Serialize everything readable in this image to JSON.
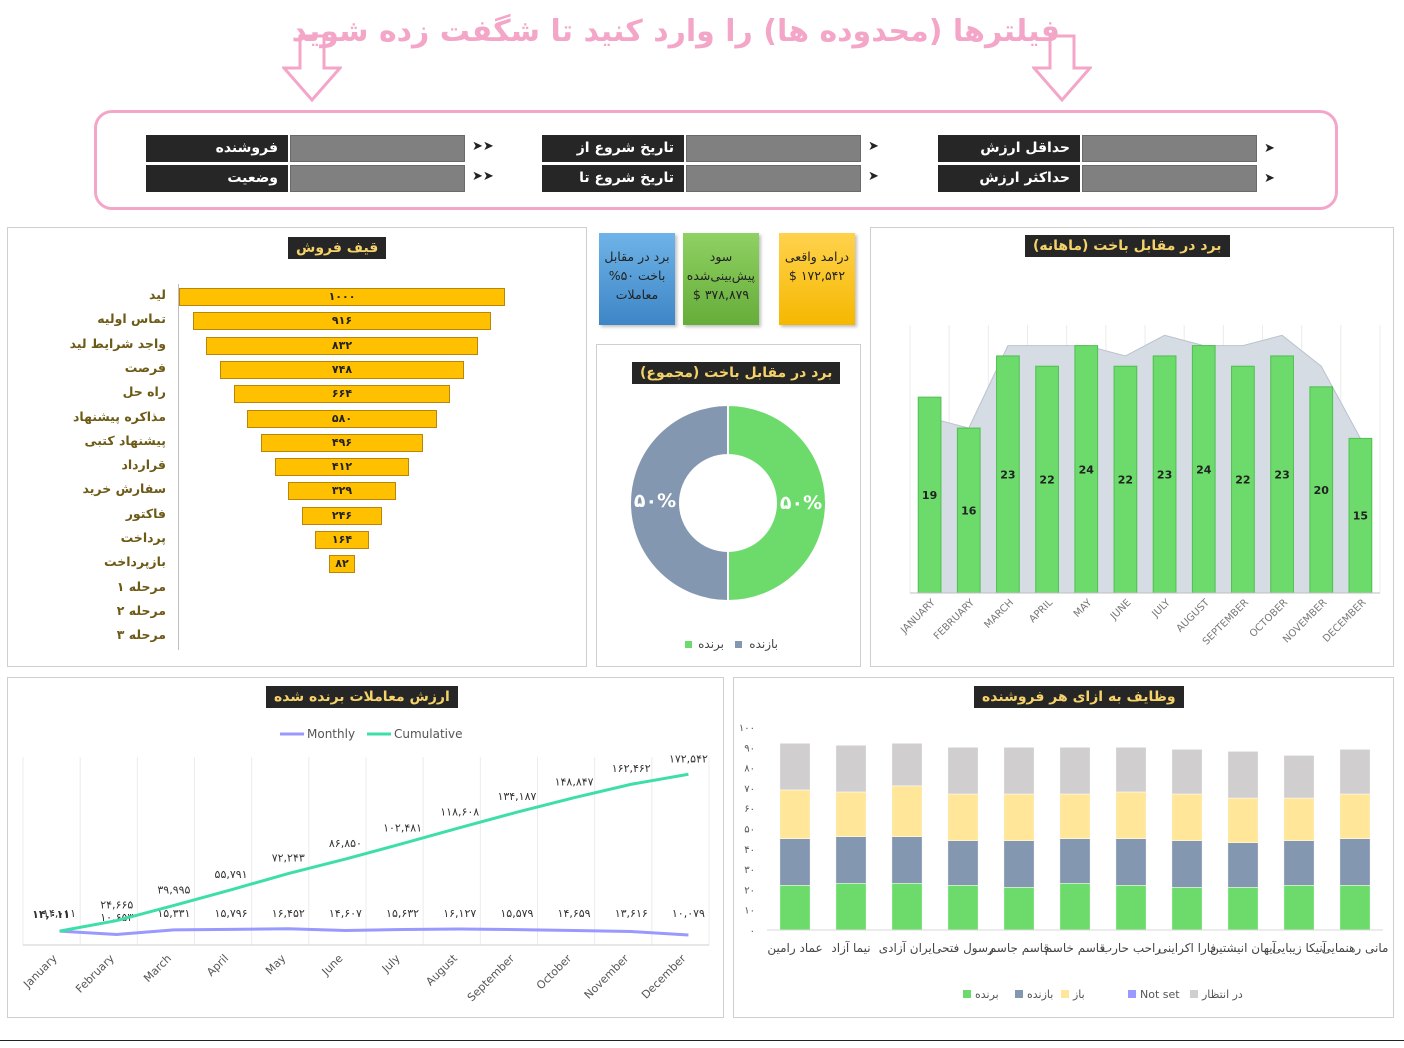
{
  "banner": {
    "text": "فیلترها (محدوده ها) را وارد کنید تا شگفت زده شوید"
  },
  "filters": {
    "seller": "فروشنده",
    "status": "وضعیت",
    "start_from": "تاریخ شروع از",
    "start_to": "تاریخ شروع تا",
    "min_value": "حداقل ارزش",
    "max_value": "حداکثر ارزش",
    "mark_double": "➤➤",
    "mark_single": "➤"
  },
  "kpis": {
    "revenue": "درامد واقعی ۱۷۲,۵۴۲ $",
    "profit": "سود پیش‌بینی‌شده ۳۷۸,۸۷۹ $",
    "winrate": "برد در مقابل باخت ۵۰% معاملات"
  },
  "colors": {
    "win": "#6cdb6c",
    "loss": "#8497b0",
    "open": "#ffe699",
    "notset": "#9999ff",
    "pending": "#d0cece",
    "funnel": "#ffc000"
  },
  "funnel": {
    "title": "قیف فروش",
    "stages": [
      {
        "label": "لید",
        "value": 1000,
        "display": "۱۰۰۰"
      },
      {
        "label": "تماس اولیه",
        "value": 916,
        "display": "۹۱۶"
      },
      {
        "label": "واجد شرایط لید",
        "value": 832,
        "display": "۸۳۲"
      },
      {
        "label": "فرصت",
        "value": 748,
        "display": "۷۴۸"
      },
      {
        "label": "راه حل",
        "value": 664,
        "display": "۶۶۴"
      },
      {
        "label": "مذاکره پیشنهاد",
        "value": 580,
        "display": "۵۸۰"
      },
      {
        "label": "پیشنهاد کتبی",
        "value": 496,
        "display": "۴۹۶"
      },
      {
        "label": "قرارداد",
        "value": 412,
        "display": "۴۱۲"
      },
      {
        "label": "سفارش خرید",
        "value": 329,
        "display": "۳۲۹"
      },
      {
        "label": "فاکتور",
        "value": 246,
        "display": "۲۴۶"
      },
      {
        "label": "پرداخت",
        "value": 164,
        "display": "۱۶۴"
      },
      {
        "label": "بازپرداخت",
        "value": 82,
        "display": "۸۲"
      },
      {
        "label": "مرحله ۱",
        "value": 0,
        "display": ""
      },
      {
        "label": "مرحله ۲",
        "value": 0,
        "display": ""
      },
      {
        "label": "مرحله ۳",
        "value": 0,
        "display": ""
      }
    ]
  },
  "donut": {
    "title": "برد در مقابل باخت (مجموع)",
    "win_label": "۵۰%",
    "loss_label": "۵۰%",
    "legend_win": "برنده",
    "legend_loss": "بازنده",
    "win": 50,
    "loss": 50
  },
  "chart_data": [
    {
      "type": "bar",
      "title": "برد در مقابل باخت (ماهانه)",
      "categories": [
        "JANUARY",
        "FEBRUARY",
        "MARCH",
        "APRIL",
        "MAY",
        "JUNE",
        "JULY",
        "AUGUST",
        "SEPTEMBER",
        "OCTOBER",
        "NOVEMBER",
        "DECEMBER"
      ],
      "values": [
        19,
        16,
        23,
        22,
        24,
        22,
        23,
        24,
        22,
        23,
        20,
        15
      ],
      "area_values": [
        17,
        16,
        24,
        24,
        24,
        23,
        25,
        24,
        24,
        25,
        22,
        15
      ]
    },
    {
      "type": "line",
      "title": "ارزش معاملات برنده شده",
      "categories": [
        "January",
        "February",
        "March",
        "April",
        "May",
        "June",
        "July",
        "August",
        "September",
        "October",
        "November",
        "December"
      ],
      "series": [
        {
          "name": "Monthly",
          "values": [
            14011,
            10653,
            15331,
            15796,
            16452,
            14607,
            15632,
            16127,
            15579,
            14659,
            13616,
            10079
          ],
          "labels": [
            "۱۴,۰۱۱",
            "۱۰,۶۵۳",
            "۱۵,۳۳۱",
            "۱۵,۷۹۶",
            "۱۶,۴۵۲",
            "۱۴,۶۰۷",
            "۱۵,۶۳۲",
            "۱۶,۱۲۷",
            "۱۵,۵۷۹",
            "۱۴,۶۵۹",
            "۱۳,۶۱۶",
            "۱۰,۰۷۹"
          ]
        },
        {
          "name": "Cumulative",
          "values": [
            14011,
            24665,
            39995,
            55791,
            72243,
            86850,
            102481,
            118608,
            134187,
            148847,
            162462,
            172542
          ],
          "labels": [
            "",
            "۲۴,۶۶۵",
            "۳۹,۹۹۵",
            "۵۵,۷۹۱",
            "۷۲,۲۴۳",
            "۸۶,۸۵۰",
            "۱۰۲,۴۸۱",
            "۱۱۸,۶۰۸",
            "۱۳۴,۱۸۷",
            "۱۴۸,۸۴۷",
            "۱۶۲,۴۶۲",
            "۱۷۲,۵۴۲"
          ]
        }
      ],
      "ylim": [
        0,
        190000
      ]
    },
    {
      "type": "bar",
      "stacked": true,
      "title": "وظایف به ازای هر فروشنده",
      "categories": [
        "مانی رهنمایی",
        "آنیکا زیبایی",
        "آیهان انیشتین",
        "فارا اکراینی",
        "راحب حارب",
        "قاسم خاسم",
        "قاسم جاسم",
        "رسول فتحی",
        "ایران آزادی",
        "نیما آزاد",
        "عماد رامین"
      ],
      "yticks": [
        "۰",
        "۱۰",
        "۲۰",
        "۳۰",
        "۴۰",
        "۵۰",
        "۶۰",
        "۷۰",
        "۸۰",
        "۹۰",
        "۱۰۰"
      ],
      "ylim": [
        0,
        100
      ],
      "series": [
        {
          "name": "برنده",
          "values": [
            22,
            22,
            21,
            21,
            22,
            23,
            21,
            22,
            23,
            23,
            22
          ]
        },
        {
          "name": "بازنده",
          "values": [
            23,
            22,
            22,
            23,
            23,
            22,
            23,
            22,
            23,
            23,
            23
          ]
        },
        {
          "name": "باز",
          "values": [
            22,
            21,
            22,
            23,
            23,
            22,
            23,
            23,
            25,
            22,
            24
          ]
        },
        {
          "name": "Not set",
          "values": [
            0,
            0,
            0,
            0,
            0,
            0,
            0,
            0,
            0,
            0,
            0
          ]
        },
        {
          "name": "در انتظار",
          "values": [
            22,
            21,
            23,
            22,
            22,
            23,
            23,
            23,
            21,
            23,
            23
          ]
        }
      ]
    }
  ],
  "legend": {
    "monthly": "Monthly",
    "cumulative": "Cumulative",
    "win": "برنده",
    "loss": "بازنده",
    "open": "باز",
    "notset": "Not set",
    "pending": "در انتظار"
  }
}
